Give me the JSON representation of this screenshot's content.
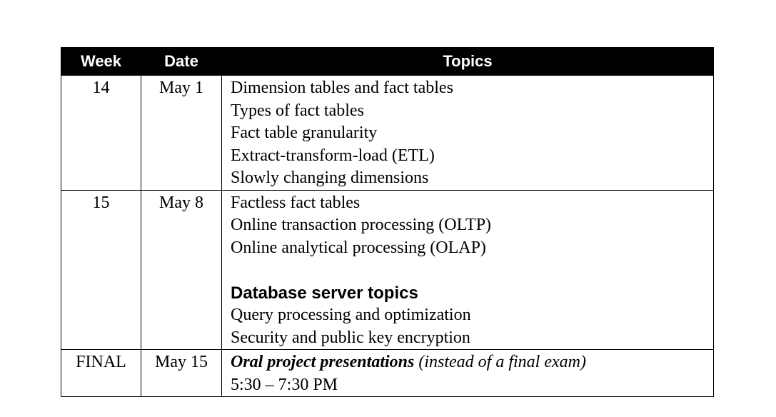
{
  "header": {
    "week": "Week",
    "date": "Date",
    "topics": "Topics"
  },
  "rows": [
    {
      "week": "14",
      "date": "May 1",
      "topics": [
        "Dimension tables and fact tables",
        "Types of fact tables",
        "Fact table granularity",
        "Extract-transform-load (ETL)",
        "Slowly changing dimensions"
      ]
    },
    {
      "week": "15",
      "date": "May 8",
      "topics": [
        "Factless fact tables",
        "Online transaction processing (OLTP)",
        "Online analytical processing (OLAP)"
      ],
      "section_heading": "Database server topics",
      "section_topics": [
        "Query processing and optimization",
        "Security and public key encryption"
      ]
    },
    {
      "week": "FINAL",
      "date": "May 15",
      "emphasis": "Oral project presentations",
      "note": " (instead of a final exam)",
      "time": "5:30 – 7:30 PM"
    }
  ]
}
